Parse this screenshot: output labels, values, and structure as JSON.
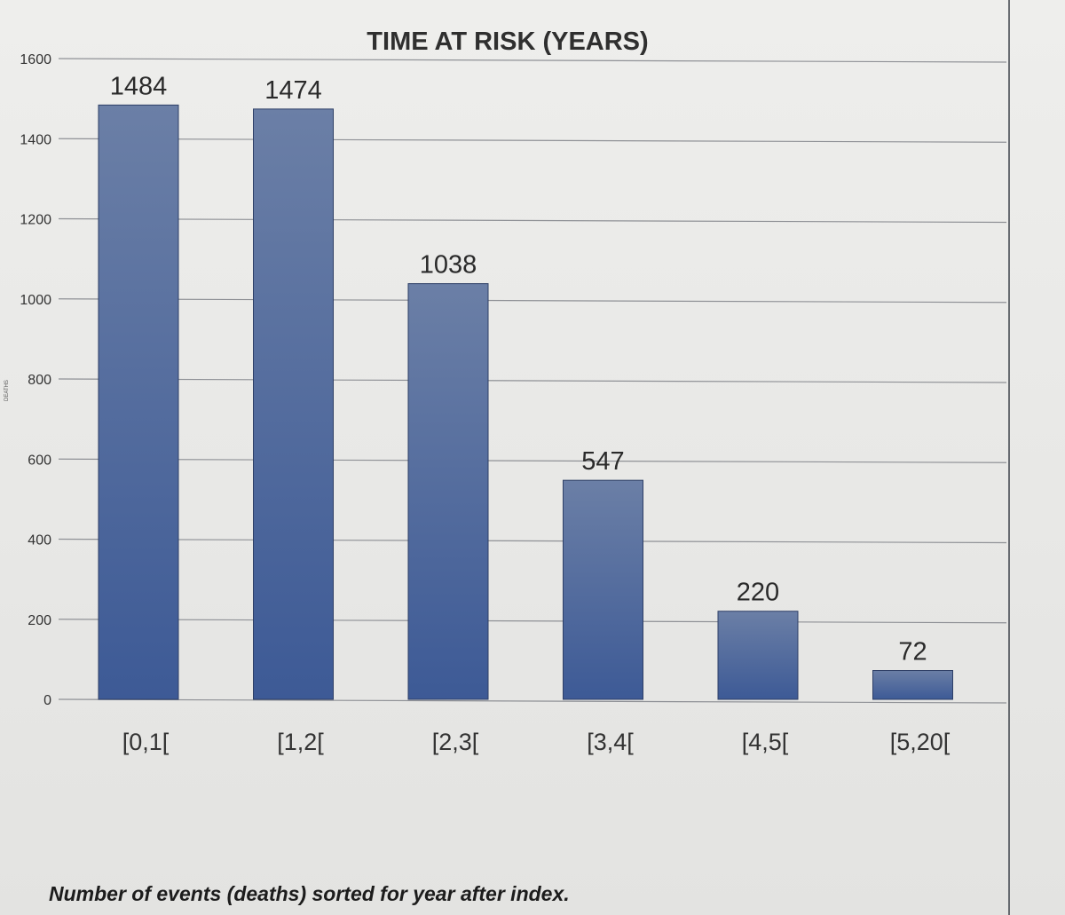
{
  "chart_data": {
    "type": "bar",
    "title": "TIME AT RISK (YEARS)",
    "ylabel": "DEATHS",
    "xlabel": "",
    "categories": [
      "[0,1[",
      "[1,2[",
      "[2,3[",
      "[3,4[",
      "[4,5[",
      "[5,20["
    ],
    "values": [
      1484,
      1474,
      1038,
      547,
      220,
      72
    ],
    "data_labels": [
      "1484",
      "1474",
      "1038",
      "547",
      "220",
      "72"
    ],
    "ylim": [
      0,
      1600
    ],
    "yticks": [
      0,
      200,
      400,
      600,
      800,
      1000,
      1200,
      1400,
      1600
    ],
    "ytick_labels": [
      "0",
      "200",
      "400",
      "600",
      "800",
      "1000",
      "1200",
      "1400",
      "1600"
    ],
    "grid": true,
    "legend": "none",
    "bar_color_top": "#6b7fa6",
    "bar_color_bottom": "#3d5a96",
    "grid_color": "#8f9196"
  },
  "caption": "Number of events (deaths) sorted for year after index."
}
